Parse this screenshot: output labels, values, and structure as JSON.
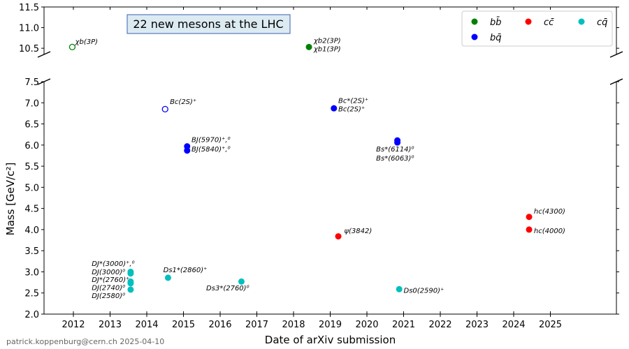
{
  "chart_data": {
    "type": "scatter",
    "title": "22 new mesons at the LHC",
    "xlabel": "Date of arXiv submission",
    "ylabel": "Mass [GeV/c²]",
    "footer": "patrick.koppenburg@cern.ch 2025-04-10",
    "xlim": [
      2011.2,
      2026.8
    ],
    "ylim_lower": [
      2.0,
      7.5
    ],
    "ylim_upper": [
      10.35,
      11.5
    ],
    "xticks": [
      "2012",
      "2013",
      "2014",
      "2015",
      "2016",
      "2017",
      "2018",
      "2019",
      "2020",
      "2021",
      "2022",
      "2023",
      "2024",
      "2025"
    ],
    "yticks_lower": [
      "2.0",
      "2.5",
      "3.0",
      "3.5",
      "4.0",
      "4.5",
      "5.0",
      "5.5",
      "6.0",
      "6.5",
      "7.0",
      "7.5"
    ],
    "yticks_upper": [
      "10.5",
      "11.0",
      "11.5"
    ],
    "legend": {
      "placement": "top-right",
      "items": [
        {
          "key": "bb",
          "label": "bb̄",
          "color": "#008000"
        },
        {
          "key": "cc",
          "label": "cc̄",
          "color": "#ff0000"
        },
        {
          "key": "cq",
          "label": "cq̄",
          "color": "#00bfbf"
        },
        {
          "key": "bq",
          "label": "bq̄",
          "color": "#0000ff"
        }
      ]
    },
    "points": [
      {
        "x": 2011.97,
        "y": 10.53,
        "cat": "bb",
        "open": true
      },
      {
        "x": 2018.42,
        "y": 10.53,
        "cat": "bb",
        "open": false
      },
      {
        "x": 2014.5,
        "y": 6.85,
        "cat": "bq",
        "open": true
      },
      {
        "x": 2019.1,
        "y": 6.87,
        "cat": "bq",
        "open": false
      },
      {
        "x": 2015.1,
        "y": 5.97,
        "cat": "bq",
        "open": false
      },
      {
        "x": 2015.1,
        "y": 5.87,
        "cat": "bq",
        "open": false
      },
      {
        "x": 2020.83,
        "y": 6.11,
        "cat": "bq",
        "open": false
      },
      {
        "x": 2020.83,
        "y": 6.06,
        "cat": "bq",
        "open": false
      },
      {
        "x": 2019.22,
        "y": 3.84,
        "cat": "cc",
        "open": false
      },
      {
        "x": 2024.42,
        "y": 4.3,
        "cat": "cc",
        "open": false
      },
      {
        "x": 2024.42,
        "y": 4.0,
        "cat": "cc",
        "open": false
      },
      {
        "x": 2013.56,
        "y": 3.0,
        "cat": "cq",
        "open": false
      },
      {
        "x": 2013.56,
        "y": 2.96,
        "cat": "cq",
        "open": false
      },
      {
        "x": 2013.56,
        "y": 2.77,
        "cat": "cq",
        "open": false
      },
      {
        "x": 2013.56,
        "y": 2.73,
        "cat": "cq",
        "open": false
      },
      {
        "x": 2013.56,
        "y": 2.58,
        "cat": "cq",
        "open": false
      },
      {
        "x": 2014.58,
        "y": 2.86,
        "cat": "cq",
        "open": false
      },
      {
        "x": 2016.58,
        "y": 2.77,
        "cat": "cq",
        "open": false
      },
      {
        "x": 2020.88,
        "y": 2.59,
        "cat": "cq",
        "open": false
      }
    ],
    "annotations": [
      {
        "text": "χb(3P)",
        "x": 2012.05,
        "y": 10.6,
        "panel": "upper",
        "anchor": "start"
      },
      {
        "text": "χb2(3P)",
        "x": 2018.55,
        "y": 10.63,
        "panel": "upper",
        "anchor": "start"
      },
      {
        "text": "χb1(3P)",
        "x": 2018.55,
        "y": 10.43,
        "panel": "upper",
        "anchor": "start"
      },
      {
        "text": "Bc(2S)⁺",
        "x": 2014.63,
        "y": 6.97,
        "panel": "lower",
        "anchor": "start"
      },
      {
        "text": "Bc*(2S)⁺",
        "x": 2019.22,
        "y": 7.0,
        "panel": "lower",
        "anchor": "start"
      },
      {
        "text": "Bc(2S)⁺",
        "x": 2019.22,
        "y": 6.8,
        "panel": "lower",
        "anchor": "start"
      },
      {
        "text": "BJ(5970)⁺,⁰",
        "x": 2015.22,
        "y": 6.07,
        "panel": "lower",
        "anchor": "start"
      },
      {
        "text": "BJ(5840)⁺,⁰",
        "x": 2015.22,
        "y": 5.85,
        "panel": "lower",
        "anchor": "start"
      },
      {
        "text": "Bs*(6114)⁰",
        "x": 2020.25,
        "y": 5.85,
        "panel": "lower",
        "anchor": "start"
      },
      {
        "text": "Bs*(6063)⁰",
        "x": 2020.25,
        "y": 5.63,
        "panel": "lower",
        "anchor": "start"
      },
      {
        "text": "ψ(3842)",
        "x": 2019.38,
        "y": 3.92,
        "panel": "lower",
        "anchor": "start"
      },
      {
        "text": "hc(4300)",
        "x": 2024.55,
        "y": 4.38,
        "panel": "lower",
        "anchor": "start"
      },
      {
        "text": "hc(4000)",
        "x": 2024.55,
        "y": 3.92,
        "panel": "lower",
        "anchor": "start"
      },
      {
        "text": "DJ*(3000)⁺,⁰",
        "x": 2012.5,
        "y": 3.14,
        "panel": "lower",
        "anchor": "start"
      },
      {
        "text": "DJ(3000)⁰",
        "x": 2012.5,
        "y": 2.94,
        "panel": "lower",
        "anchor": "start"
      },
      {
        "text": "DJ*(2760)⁺",
        "x": 2012.5,
        "y": 2.76,
        "panel": "lower",
        "anchor": "start"
      },
      {
        "text": "DJ(2740)⁰",
        "x": 2012.5,
        "y": 2.57,
        "panel": "lower",
        "anchor": "start"
      },
      {
        "text": "DJ(2580)⁰",
        "x": 2012.5,
        "y": 2.38,
        "panel": "lower",
        "anchor": "start"
      },
      {
        "text": "Ds1*(2860)⁺",
        "x": 2014.45,
        "y": 2.99,
        "panel": "lower",
        "anchor": "start"
      },
      {
        "text": "Ds3*(2760)⁰",
        "x": 2015.62,
        "y": 2.56,
        "panel": "lower",
        "anchor": "start"
      },
      {
        "text": "Ds0(2590)⁺",
        "x": 2021.0,
        "y": 2.5,
        "panel": "lower",
        "anchor": "start"
      }
    ]
  }
}
